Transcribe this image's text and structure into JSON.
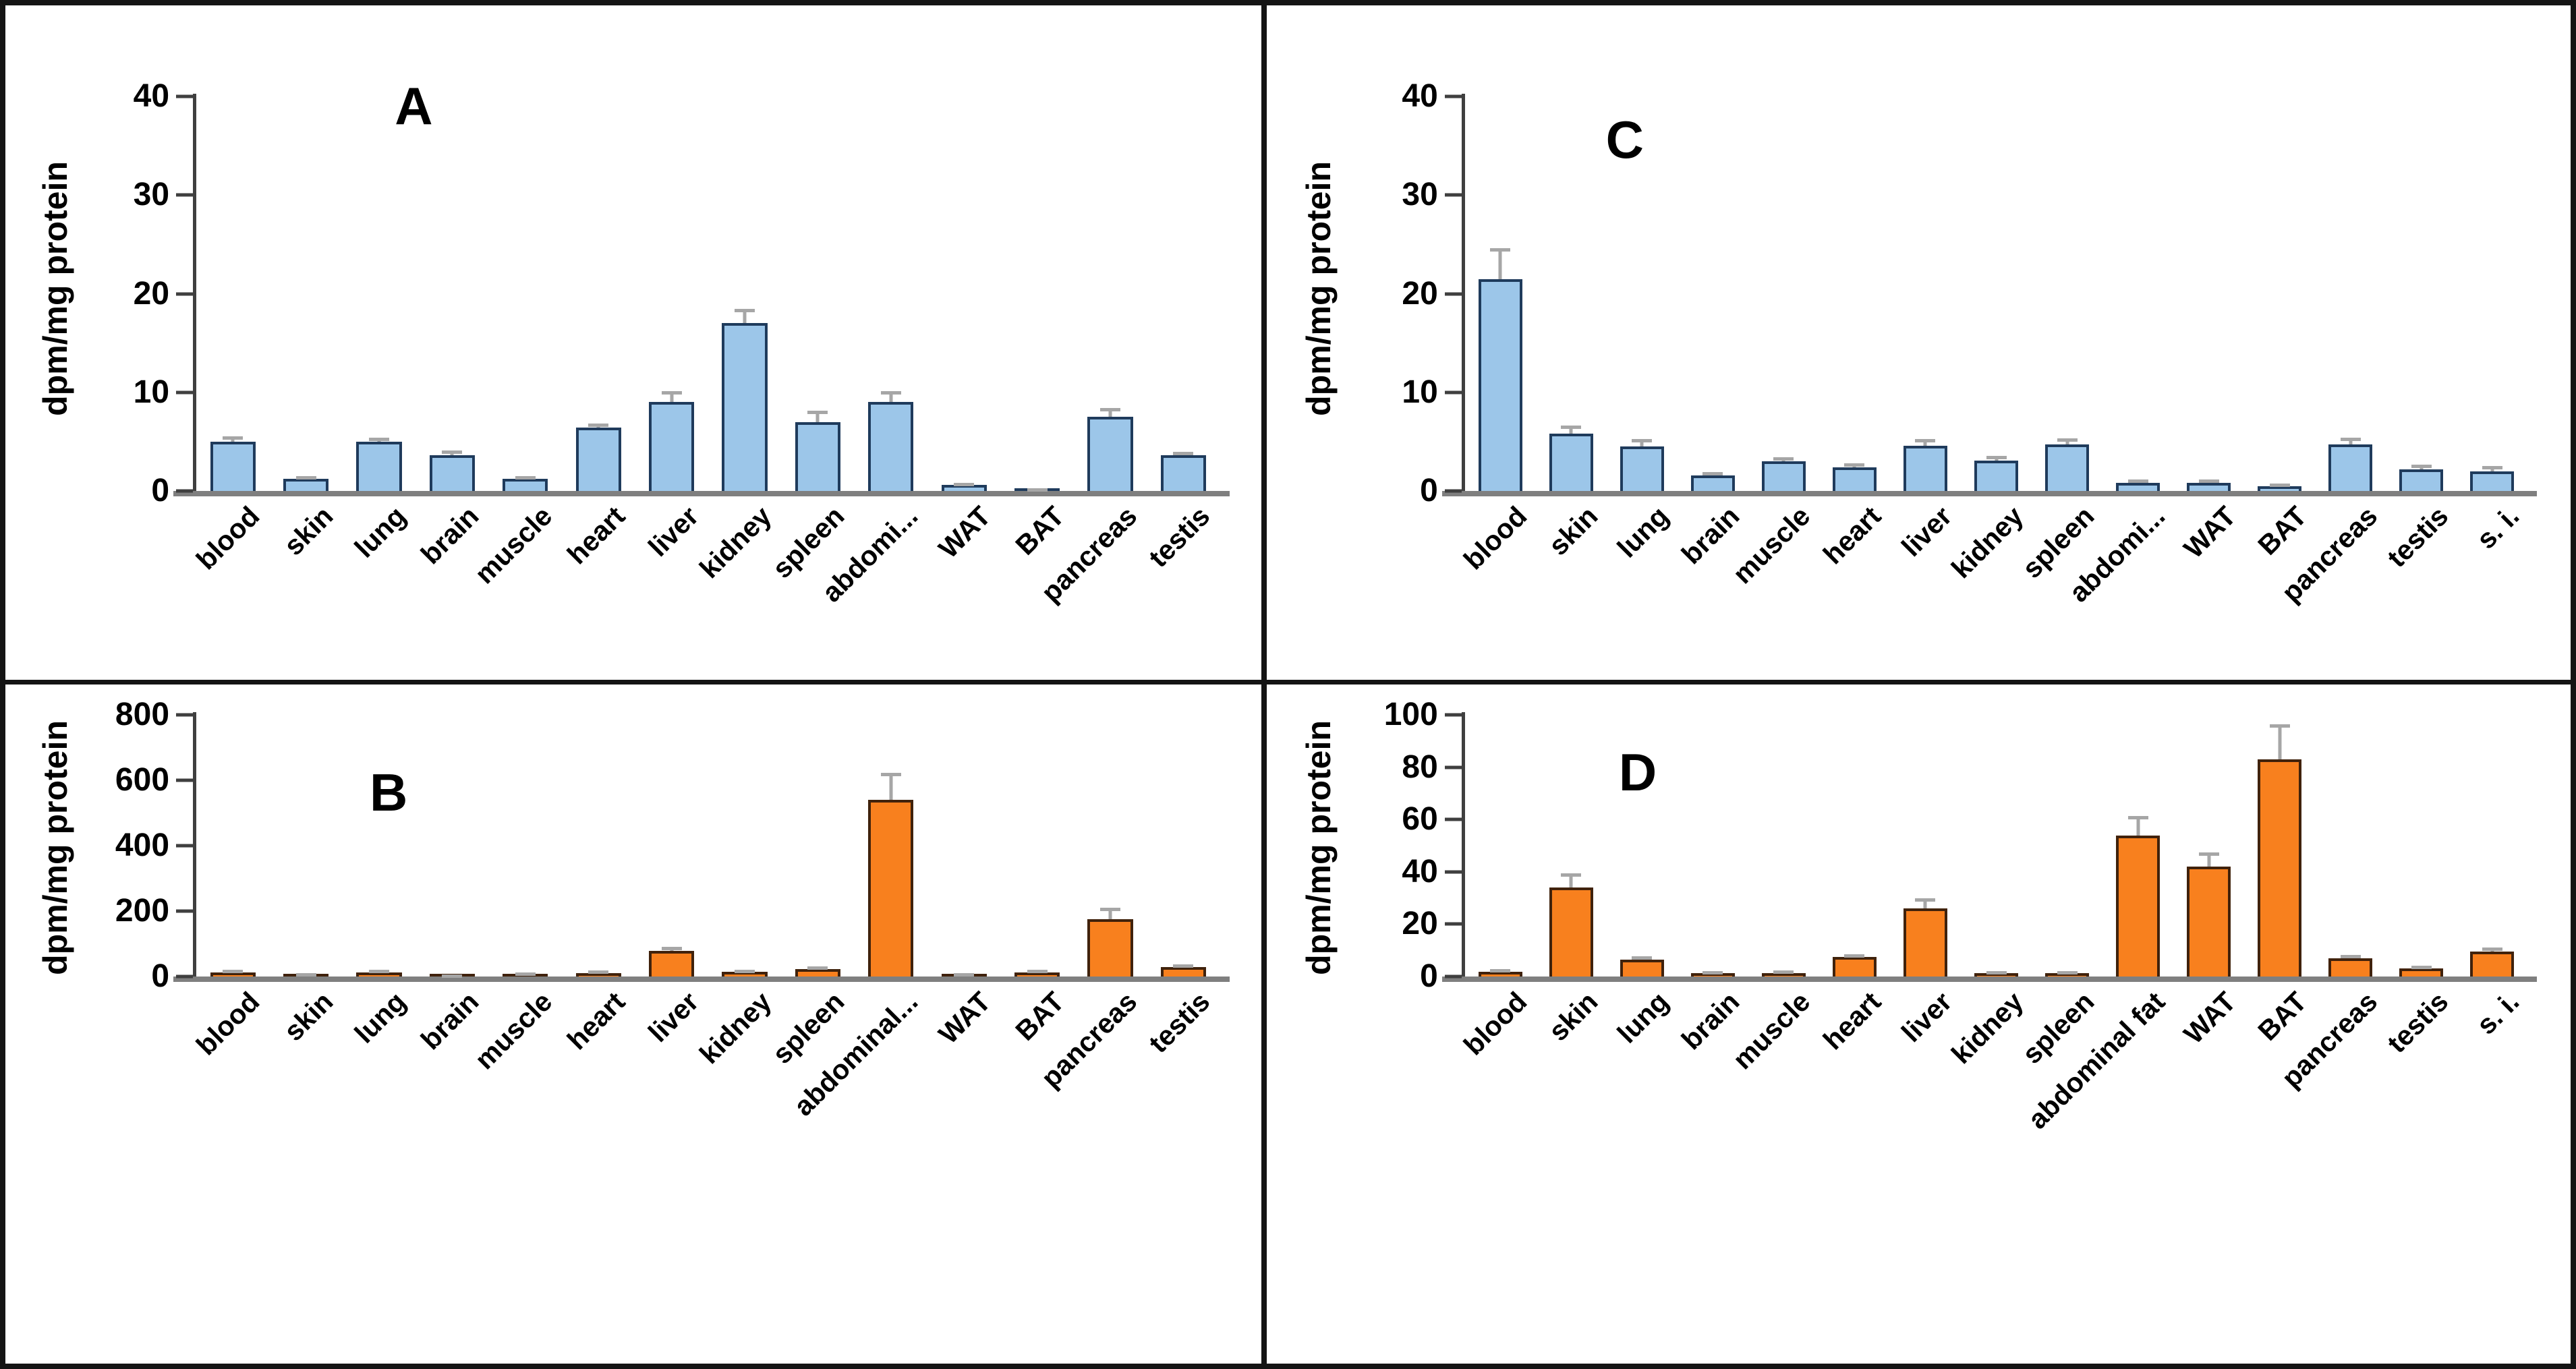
{
  "figure": {
    "panel_letters": {
      "a": "A",
      "b": "B",
      "c": "C",
      "d": "D"
    },
    "styles": {
      "blue_fill": "#9CC6E9",
      "blue_border": "#1F3B5C",
      "orange_fill": "#F8801E",
      "orange_border": "#40220C",
      "error_color": "#A6A6A6",
      "spine_color": "#3F3F3F",
      "baseline_color": "#7F7F7F",
      "text_color": "#000000"
    }
  },
  "chart_data": [
    {
      "id": "A",
      "type": "bar",
      "title": "A",
      "ylabel": "dpm/mg protein",
      "ylim": [
        0,
        40
      ],
      "yticks": [
        0,
        10,
        20,
        30,
        40
      ],
      "grid": false,
      "legend": "none",
      "bar_fill": "#9CC6E9",
      "bar_border": "#1F3B5C",
      "categories": [
        "blood",
        "skin",
        "lung",
        "brain",
        "muscle",
        "heart",
        "liver",
        "kidney",
        "spleen",
        "abdomi...",
        "WAT",
        "BAT",
        "pancreas",
        "testis"
      ],
      "values": [
        5.0,
        1.2,
        5.0,
        3.6,
        1.2,
        6.4,
        9.0,
        17.0,
        7.0,
        9.0,
        0.6,
        0.1,
        7.5,
        3.6
      ],
      "errors": [
        0.4,
        0.2,
        0.3,
        0.4,
        0.2,
        0.3,
        1.0,
        1.3,
        1.0,
        1.0,
        0.1,
        0.05,
        0.8,
        0.2
      ]
    },
    {
      "id": "B",
      "type": "bar",
      "title": "B",
      "ylabel": "dpm/mg protein",
      "ylim": [
        0,
        800
      ],
      "yticks": [
        0,
        200,
        400,
        600,
        800
      ],
      "grid": false,
      "legend": "none",
      "bar_fill": "#F8801E",
      "bar_border": "#40220C",
      "categories": [
        "blood",
        "skin",
        "lung",
        "brain",
        "muscle",
        "heart",
        "liver",
        "kidney",
        "spleen",
        "abdominal...",
        "WAT",
        "BAT",
        "pancreas",
        "testis"
      ],
      "values": [
        12,
        4,
        12,
        2,
        7,
        11,
        78,
        14,
        22,
        540,
        4,
        13,
        175,
        28
      ],
      "errors": [
        4,
        2,
        4,
        1,
        2,
        3,
        8,
        3,
        4,
        80,
        2,
        4,
        32,
        5
      ]
    },
    {
      "id": "C",
      "type": "bar",
      "title": "C",
      "ylabel": "dpm/mg protein",
      "ylim": [
        0,
        40
      ],
      "yticks": [
        0,
        10,
        20,
        30,
        40
      ],
      "grid": false,
      "legend": "none",
      "bar_fill": "#9CC6E9",
      "bar_border": "#1F3B5C",
      "categories": [
        "blood",
        "skin",
        "lung",
        "brain",
        "muscle",
        "heart",
        "liver",
        "kidney",
        "spleen",
        "abdomi...",
        "WAT",
        "BAT",
        "pancreas",
        "testis",
        "s. i."
      ],
      "values": [
        21.5,
        5.8,
        4.5,
        1.6,
        3.0,
        2.4,
        4.6,
        3.1,
        4.7,
        0.8,
        0.8,
        0.5,
        4.7,
        2.2,
        2.0
      ],
      "errors": [
        3.0,
        0.7,
        0.6,
        0.2,
        0.3,
        0.3,
        0.5,
        0.3,
        0.5,
        0.2,
        0.2,
        0.1,
        0.6,
        0.3,
        0.4
      ]
    },
    {
      "id": "D",
      "type": "bar",
      "title": "D",
      "ylabel": "dpm/mg protein",
      "ylim": [
        0,
        100
      ],
      "yticks": [
        0,
        20,
        40,
        60,
        80,
        100
      ],
      "grid": false,
      "legend": "none",
      "bar_fill": "#F8801E",
      "bar_border": "#40220C",
      "categories": [
        "blood",
        "skin",
        "lung",
        "brain",
        "muscle",
        "heart",
        "liver",
        "kidney",
        "spleen",
        "abdominal fat",
        "WAT",
        "BAT",
        "pancreas",
        "testis",
        "s. i."
      ],
      "values": [
        1.8,
        34,
        6.5,
        1.2,
        1.3,
        7.5,
        26,
        1.2,
        1.3,
        54,
        42,
        83,
        7,
        3,
        9.5
      ],
      "errors": [
        0.4,
        5,
        0.6,
        0.3,
        0.4,
        0.6,
        3.5,
        0.3,
        0.3,
        7,
        5,
        13,
        0.8,
        0.6,
        1.2
      ]
    }
  ]
}
